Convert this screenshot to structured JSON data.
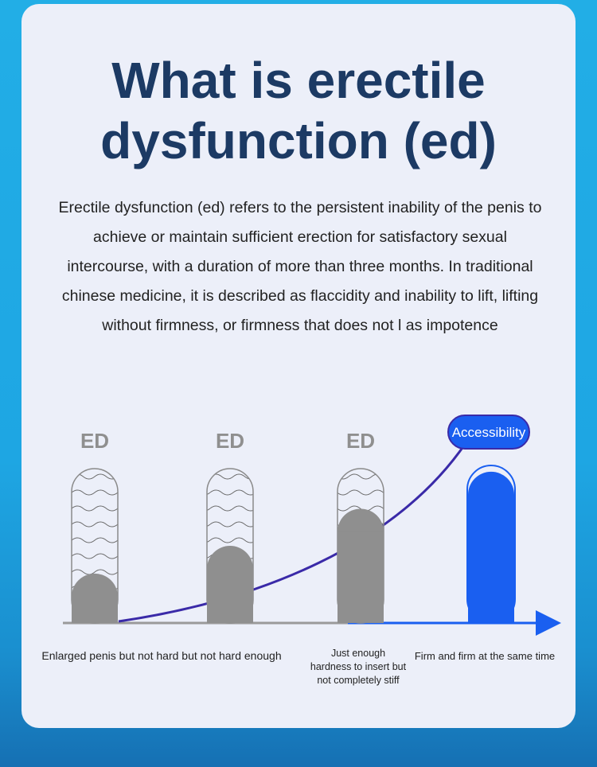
{
  "title_lines": [
    "What is erectile",
    "dysfunction (ed)"
  ],
  "description": "Erectile dysfunction (ed) refers to the persistent inability of the penis to achieve or maintain sufficient erection for satisfactory sexual intercourse, with a duration of more than three months. In traditional chinese medicine, it is described as flaccidity and inability to lift, lifting without firmness, or firmness that does not l as impotence",
  "stages": [
    {
      "label": "ED",
      "fill_level": 0.32,
      "caption": "Enlarged penis but not hard but not hard enough"
    },
    {
      "label": "ED",
      "fill_level": 0.5,
      "caption": ""
    },
    {
      "label": "ED",
      "fill_level": 0.74,
      "caption": "Just enough hardness to insert but not completely stiff"
    },
    {
      "label": "",
      "fill_level": 0.98,
      "caption": "Firm and firm at the same time"
    }
  ],
  "badge": "Accessibility",
  "colors": {
    "title": "#1c3a64",
    "gray_fill": "#8f8f8f",
    "blue_fill": "#1a5ff0",
    "curve": "#3a2aa8",
    "axis_gray": "#9a9a9a",
    "axis_blue": "#1a5ff0"
  },
  "icons": [
    "wave-pattern",
    "arrow-right-icon"
  ]
}
